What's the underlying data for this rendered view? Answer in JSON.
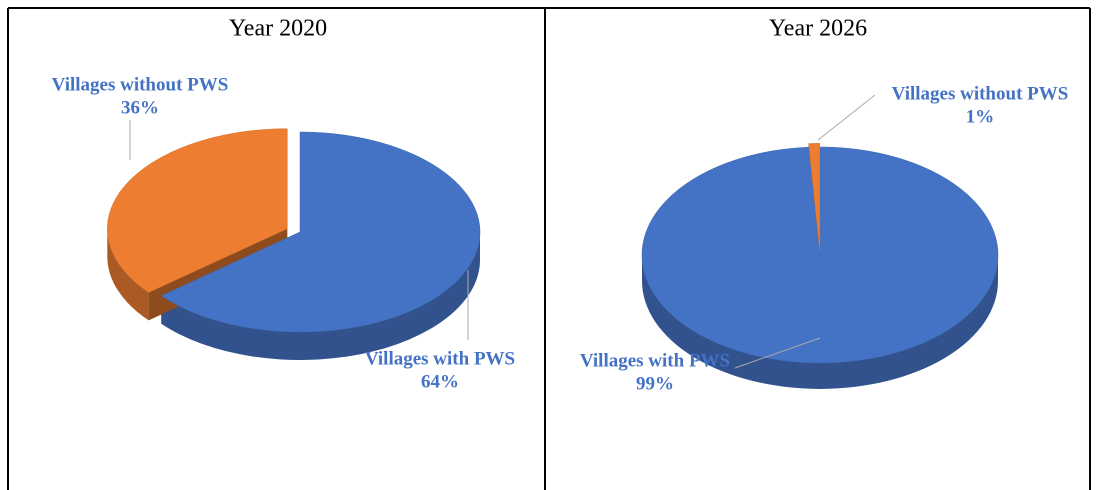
{
  "chart_data": [
    {
      "type": "pie",
      "title": "Year 2020",
      "categories": [
        "Villages with PWS",
        "Villages without PWS"
      ],
      "values": [
        64,
        36
      ],
      "value_labels": [
        "64%",
        "36%"
      ],
      "colors": [
        "#4472c4",
        "#ed7d31"
      ]
    },
    {
      "type": "pie",
      "title": "Year 2026",
      "categories": [
        "Villages with PWS",
        "Villages without PWS"
      ],
      "values": [
        99,
        1
      ],
      "value_labels": [
        "99%",
        "1%"
      ],
      "colors": [
        "#4472c4",
        "#ed7d31"
      ]
    }
  ]
}
